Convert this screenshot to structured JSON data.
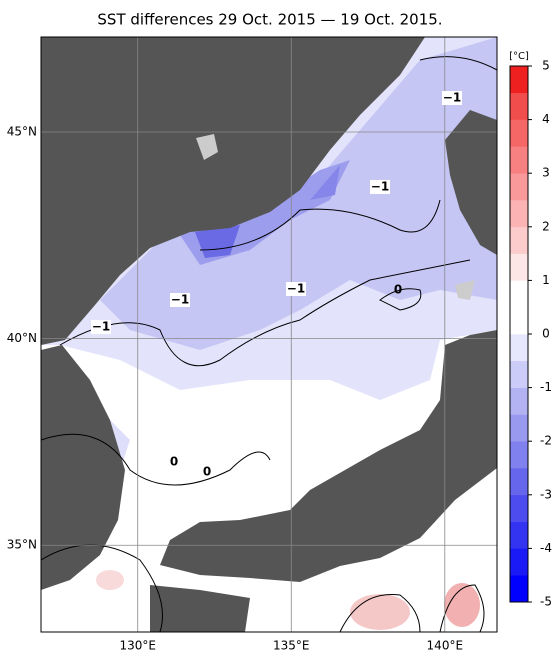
{
  "title": "SST differences 29 Oct. 2015 — 19 Oct. 2015.",
  "map": {
    "lonlim": [
      126.85,
      141.7
    ],
    "latlim": [
      32.9,
      47.3
    ],
    "lon_ticks": [
      {
        "value": 130,
        "label": "130°E"
      },
      {
        "value": 135,
        "label": "135°E"
      },
      {
        "value": 140,
        "label": "140°E"
      }
    ],
    "lat_ticks": [
      {
        "value": 45,
        "label": "45°N"
      },
      {
        "value": 40,
        "label": "40°N"
      },
      {
        "value": 35,
        "label": "35°N"
      }
    ],
    "contour_labels": [
      "−1",
      "−1",
      "−1",
      "−1",
      "−1",
      "0",
      "0",
      "0"
    ]
  },
  "colorbar": {
    "unit": "[°C]",
    "lim": [
      -5,
      5
    ],
    "ticks": [
      5,
      4,
      3,
      2,
      1,
      0,
      -1,
      -2,
      -3,
      -4,
      -5
    ],
    "colors": [
      "#0000ff",
      "#1a1af7",
      "#3333f2",
      "#4d4def",
      "#6666ec",
      "#8080ee",
      "#9999f0",
      "#b3b3f4",
      "#ccccf8",
      "#e6e6fc",
      "#ffffff",
      "#ffffff",
      "#fde6e6",
      "#fccccc",
      "#fbb3b3",
      "#f99999",
      "#f78080",
      "#f56666",
      "#f24d4d",
      "#ee2020"
    ]
  }
}
